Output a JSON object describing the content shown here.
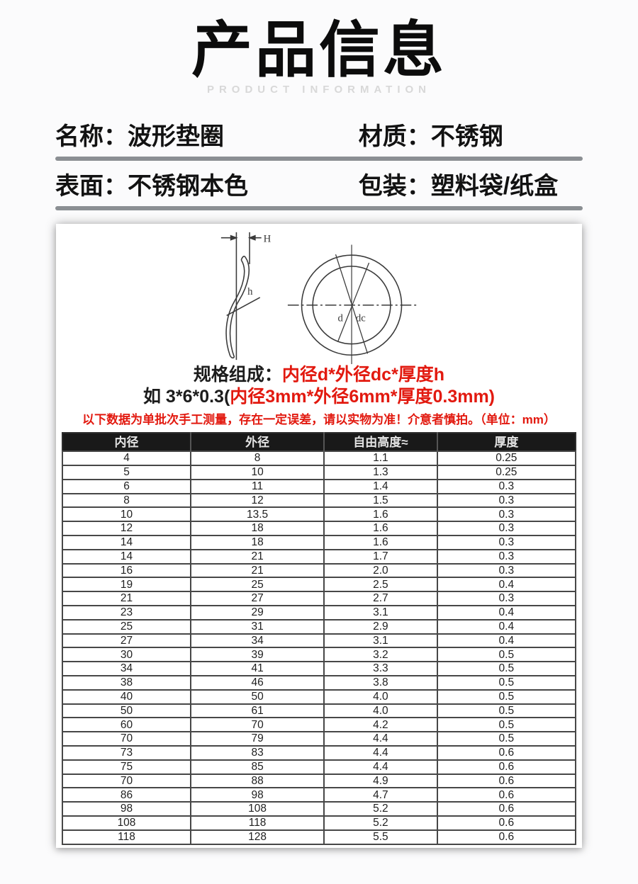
{
  "page": {
    "title": "产品信息",
    "subtitle": "PRODUCT INFORMATION"
  },
  "info": {
    "fields": [
      {
        "label": "名称：",
        "value": "波形垫圈"
      },
      {
        "label": "材质：",
        "value": "不锈钢"
      },
      {
        "label": "表面：",
        "value": "不锈钢本色"
      },
      {
        "label": "包装：",
        "value": "塑料袋/纸盒"
      }
    ]
  },
  "diagram": {
    "labels": {
      "H": "H",
      "h": "h",
      "d": "d",
      "dc": "dc"
    }
  },
  "spec": {
    "line1_black": "规格组成：",
    "line1_red": "内径d*外径dc*厚度h",
    "line2_black": "如 3*6*0.3(",
    "line2_red": "内径3mm*外径6mm*厚度0.3mm)",
    "note": "以下数据为单批次手工测量，存在一定误差，请以实物为准！介意者慎拍。（单位：mm）"
  },
  "colors": {
    "accent_red": "#e2190f",
    "table_header_bg": "#191919",
    "divider_gray": "#8b8f93"
  },
  "table": {
    "headers": [
      "内径",
      "外径",
      "自由高度≈",
      "厚度"
    ],
    "rows": [
      [
        "4",
        "8",
        "1.1",
        "0.25"
      ],
      [
        "5",
        "10",
        "1.3",
        "0.25"
      ],
      [
        "6",
        "11",
        "1.4",
        "0.3"
      ],
      [
        "8",
        "12",
        "1.5",
        "0.3"
      ],
      [
        "10",
        "13.5",
        "1.6",
        "0.3"
      ],
      [
        "12",
        "18",
        "1.6",
        "0.3"
      ],
      [
        "14",
        "18",
        "1.6",
        "0.3"
      ],
      [
        "14",
        "21",
        "1.7",
        "0.3"
      ],
      [
        "16",
        "21",
        "2.0",
        "0.3"
      ],
      [
        "19",
        "25",
        "2.5",
        "0.4"
      ],
      [
        "21",
        "27",
        "2.7",
        "0.3"
      ],
      [
        "23",
        "29",
        "3.1",
        "0.4"
      ],
      [
        "25",
        "31",
        "2.9",
        "0.4"
      ],
      [
        "27",
        "34",
        "3.1",
        "0.4"
      ],
      [
        "30",
        "39",
        "3.2",
        "0.5"
      ],
      [
        "34",
        "41",
        "3.3",
        "0.5"
      ],
      [
        "38",
        "46",
        "3.8",
        "0.5"
      ],
      [
        "40",
        "50",
        "4.0",
        "0.5"
      ],
      [
        "50",
        "61",
        "4.0",
        "0.5"
      ],
      [
        "60",
        "70",
        "4.2",
        "0.5"
      ],
      [
        "70",
        "79",
        "4.4",
        "0.5"
      ],
      [
        "73",
        "83",
        "4.4",
        "0.6"
      ],
      [
        "75",
        "85",
        "4.4",
        "0.6"
      ],
      [
        "70",
        "88",
        "4.9",
        "0.6"
      ],
      [
        "86",
        "98",
        "4.7",
        "0.6"
      ],
      [
        "98",
        "108",
        "5.2",
        "0.6"
      ],
      [
        "108",
        "118",
        "5.2",
        "0.6"
      ],
      [
        "118",
        "128",
        "5.5",
        "0.6"
      ]
    ]
  }
}
